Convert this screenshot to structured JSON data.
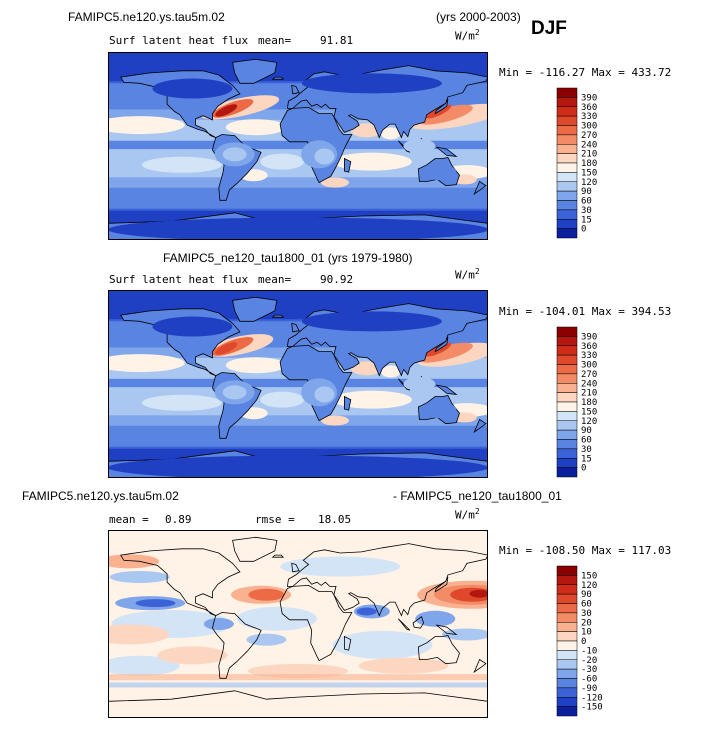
{
  "header": {
    "run_label": "FAMIPC5.ne120.ys.tau5m.02",
    "years": "(yrs 2000-2003)",
    "season": "DJF"
  },
  "colors": {
    "ocean_deep": "#1a2fb5",
    "land_blue": "#3d6fd8",
    "warm": "#f27a55",
    "hot": "#c8241b"
  },
  "chart_data": [
    {
      "type": "heatmap",
      "title": "FAMIPC5.ne120.ys.tau5m.02 (yrs 2000-2003)",
      "field": "Surf latent heat flux",
      "stat_label": "mean=",
      "stat_value": "91.81",
      "units_base": "W/m",
      "units_exp": "2",
      "minmax": "Min = -116.27  Max = 433.72",
      "min": -116.27,
      "max": 433.72,
      "levels": [
        "390",
        "360",
        "330",
        "300",
        "270",
        "240",
        "210",
        "180",
        "150",
        "120",
        "90",
        "60",
        "30",
        "15",
        "0"
      ],
      "colors": [
        "#8b0000",
        "#b3170f",
        "#cf2d19",
        "#e0482b",
        "#ec6a45",
        "#f38c66",
        "#f9b190",
        "#fcd6c1",
        "#fff2e6",
        "#d4e4f7",
        "#a9c7f1",
        "#7fa5ea",
        "#5a84e2",
        "#3c62d8",
        "#2040c4",
        "#0b1f9e"
      ]
    },
    {
      "type": "heatmap",
      "title": "FAMIPC5_ne120_tau1800_01 (yrs 1979-1980)",
      "field": "Surf latent heat flux",
      "stat_label": "mean=",
      "stat_value": "90.92",
      "units_base": "W/m",
      "units_exp": "2",
      "minmax": "Min = -104.01  Max = 394.53",
      "min": -104.01,
      "max": 394.53,
      "levels": [
        "390",
        "360",
        "330",
        "300",
        "270",
        "240",
        "210",
        "180",
        "150",
        "120",
        "90",
        "60",
        "30",
        "15",
        "0"
      ],
      "colors": [
        "#8b0000",
        "#b3170f",
        "#cf2d19",
        "#e0482b",
        "#ec6a45",
        "#f38c66",
        "#f9b190",
        "#fcd6c1",
        "#fff2e6",
        "#d4e4f7",
        "#a9c7f1",
        "#7fa5ea",
        "#5a84e2",
        "#3c62d8",
        "#2040c4",
        "#0b1f9e"
      ]
    },
    {
      "type": "heatmap",
      "title_left": "FAMIPC5.ne120.ys.tau5m.02",
      "title_right": "- FAMIPC5_ne120_tau1800_01",
      "mean_label": "mean =",
      "mean_value": "0.89",
      "rmse_label": "rmse =",
      "rmse_value": "18.05",
      "units_base": "W/m",
      "units_exp": "2",
      "minmax": "Min = -108.50  Max = 117.03",
      "min": -108.5,
      "max": 117.03,
      "levels": [
        "150",
        "120",
        "90",
        "60",
        "30",
        "20",
        "10",
        "0",
        "-10",
        "-20",
        "-30",
        "-60",
        "-90",
        "-120",
        "-150"
      ],
      "colors": [
        "#8b0000",
        "#b3170f",
        "#cf2d19",
        "#e0482b",
        "#ec6a45",
        "#f38c66",
        "#f9b190",
        "#fcd6c1",
        "#fff2e6",
        "#d4e4f7",
        "#a9c7f1",
        "#7fa5ea",
        "#5a84e2",
        "#3c62d8",
        "#2040c4",
        "#0b1f9e"
      ]
    }
  ]
}
